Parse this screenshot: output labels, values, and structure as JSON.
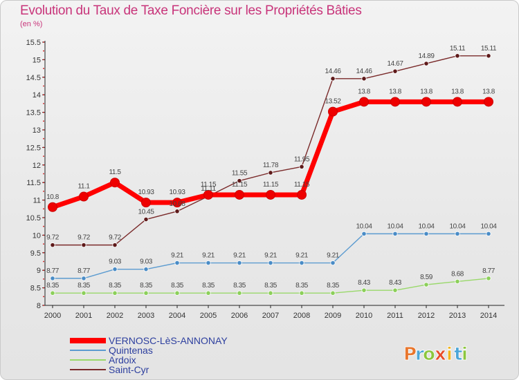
{
  "chart_data": {
    "type": "line",
    "title": "Evolution du Taux de Taxe Foncière sur les Propriétés Bâties",
    "ylabel": "(en %)",
    "xlabel": "",
    "ylim": [
      8,
      15.5
    ],
    "yticks": [
      "8",
      "8.5",
      "9",
      "9.5",
      "10",
      "10.5",
      "11",
      "11.5",
      "12",
      "12.5",
      "13",
      "13.5",
      "14",
      "14.5",
      "15",
      "15.5"
    ],
    "categories": [
      "2000",
      "2001",
      "2002",
      "2003",
      "2004",
      "2005",
      "2006",
      "2007",
      "2008",
      "2009",
      "2010",
      "2011",
      "2012",
      "2013",
      "2014"
    ],
    "series": [
      {
        "name": "Ardoix",
        "color": "#99d86a",
        "marker": "#8ccf5a",
        "values": [
          8.35,
          8.35,
          8.35,
          8.35,
          8.35,
          8.35,
          8.35,
          8.35,
          8.35,
          8.35,
          8.43,
          8.43,
          8.59,
          8.68,
          8.77
        ],
        "labels": [
          "8.35",
          "8.35",
          "8.35",
          "8.35",
          "8.35",
          "8.35",
          "8.35",
          "8.35",
          "8.35",
          "8.35",
          "8.43",
          "8.43",
          "8.59",
          "8.68",
          "8.77"
        ]
      },
      {
        "name": "Quintenas",
        "color": "#5b9bd0",
        "marker": "#4a8cc6",
        "values": [
          8.77,
          8.77,
          9.03,
          9.03,
          9.21,
          9.21,
          9.21,
          9.21,
          9.21,
          9.21,
          10.04,
          10.04,
          10.04,
          10.04,
          10.04
        ],
        "labels": [
          "8.77",
          "8.77",
          "9.03",
          "9.03",
          "9.21",
          "9.21",
          "9.21",
          "9.21",
          "9.21",
          "9.21",
          "10.04",
          "10.04",
          "10.04",
          "10.04",
          "10.04"
        ]
      },
      {
        "name": "Saint-Cyr",
        "color": "#7a2a2a",
        "marker": "#5e1a1a",
        "values": [
          9.72,
          9.72,
          9.72,
          10.45,
          10.68,
          11.11,
          11.55,
          11.78,
          11.95,
          14.46,
          14.46,
          14.67,
          14.89,
          15.11,
          15.11
        ],
        "labels": [
          "9.72",
          "9.72",
          "9.72",
          "10.45",
          "10.68",
          "11.11",
          "11.55",
          "11.78",
          "11.95",
          "14.46",
          "14.46",
          "14.67",
          "14.89",
          "15.11",
          "15.11"
        ]
      },
      {
        "name": "VERNOSC-LèS-ANNONAY",
        "color": "#ff0000",
        "marker": "#ee0000",
        "values": [
          10.8,
          11.1,
          11.5,
          10.93,
          10.93,
          11.15,
          11.15,
          11.15,
          11.15,
          13.52,
          13.8,
          13.8,
          13.8,
          13.8,
          13.8
        ],
        "labels": [
          "10.8",
          "11.1",
          "11.5",
          "10.93",
          "10.93",
          "11.15",
          "11.15",
          "11.15",
          "11.15",
          "13.52",
          "13.8",
          "13.8",
          "13.8",
          "13.8",
          "13.8"
        ]
      }
    ],
    "legend": [
      "VERNOSC-LèS-ANNONAY",
      "Quintenas",
      "Ardoix",
      "Saint-Cyr"
    ],
    "legend_position": "bottom-left",
    "grid": false
  },
  "brand": {
    "text": "Proxiti",
    "letters": [
      "P",
      "r",
      "o",
      "x",
      "i",
      "t",
      "i"
    ]
  }
}
